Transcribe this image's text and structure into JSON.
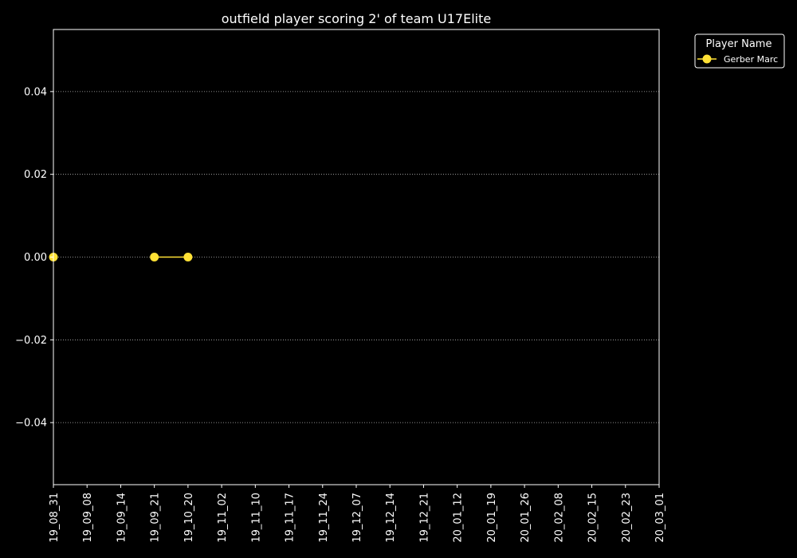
{
  "chart_data": {
    "type": "line",
    "title": "outfield player scoring 2' of team U17Elite",
    "xlabel": "",
    "ylabel": "",
    "x_categories": [
      "19_08_31",
      "19_09_08",
      "19_09_14",
      "19_09_21",
      "19_10_20",
      "19_11_02",
      "19_11_10",
      "19_11_17",
      "19_11_24",
      "19_12_07",
      "19_12_14",
      "19_12_21",
      "20_01_12",
      "20_01_19",
      "20_01_26",
      "20_02_08",
      "20_02_15",
      "20_02_23",
      "20_03_01"
    ],
    "ylim": [
      -0.055,
      0.055
    ],
    "yticks": [
      -0.04,
      -0.02,
      0.0,
      0.02,
      0.04
    ],
    "ytick_labels": [
      "−0.04",
      "−0.02",
      "0.00",
      "0.02",
      "0.04"
    ],
    "grid": "horizontal dotted",
    "legend": {
      "title": "Player Name",
      "placement": "outside top-right"
    },
    "series": [
      {
        "name": "Gerber Marc",
        "color": "#FFE135",
        "segments": [
          [
            {
              "x": "19_08_31",
              "y": 0.0
            }
          ],
          [
            {
              "x": "19_09_21",
              "y": 0.0
            },
            {
              "x": "19_10_20",
              "y": 0.0
            }
          ]
        ]
      }
    ]
  },
  "colors": {
    "background": "#000000",
    "axes": "#ffffff",
    "grid": "#bbbbbb"
  }
}
